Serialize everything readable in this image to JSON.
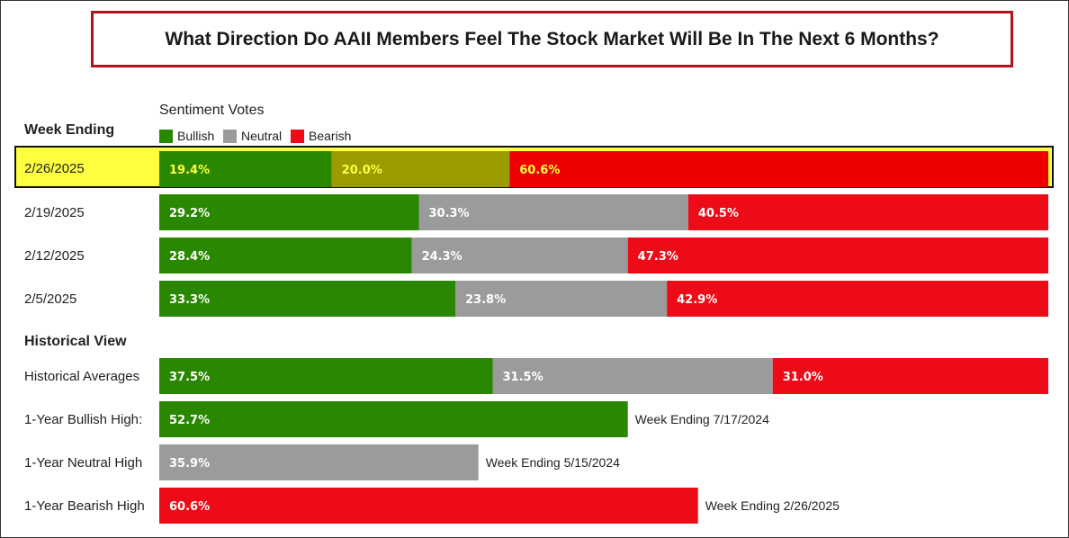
{
  "title": "What Direction Do AAII Members Feel The Stock Market Will Be In The Next 6 Months?",
  "week_ending_header": "Week Ending",
  "historical_header": "Historical View",
  "legend": {
    "title": "Sentiment Votes",
    "items": [
      {
        "label": "Bullish",
        "color": "#2a8700"
      },
      {
        "label": "Neutral",
        "color": "#9b9b9b"
      },
      {
        "label": "Bearish",
        "color": "#ee0b18"
      }
    ]
  },
  "colors": {
    "bullish": "#2a8700",
    "neutral": "#9b9b9b",
    "bearish": "#ee0b18",
    "highlight_bullish": "#2a8700",
    "highlight_neutral": "#9c9c00",
    "highlight_bearish": "#ee0000",
    "highlight_row": "#ffff40",
    "highlight_text": "#ffff40"
  },
  "rows": [
    {
      "label": "2/26/2025",
      "highlight": true
    },
    {
      "label": "2/19/2025"
    },
    {
      "label": "2/12/2025"
    },
    {
      "label": "2/5/2025"
    },
    {
      "label": "Historical Averages"
    },
    {
      "label": "1-Year Bullish High:"
    },
    {
      "label": "1-Year Neutral High"
    },
    {
      "label": "1-Year Bearish High"
    }
  ],
  "chart_data": {
    "type": "bar",
    "orientation": "horizontal",
    "stacked": true,
    "categories": [
      "2/26/2025",
      "2/19/2025",
      "2/12/2025",
      "2/5/2025",
      "Historical Averages",
      "1-Year Bullish High:",
      "1-Year Neutral High",
      "1-Year Bearish High"
    ],
    "series": [
      {
        "name": "Bullish",
        "values": [
          19.4,
          29.2,
          28.4,
          33.3,
          37.5,
          52.7,
          null,
          null
        ],
        "labels": [
          "19.4%",
          "29.2%",
          "28.4%",
          "33.3%",
          "37.5%",
          "52.7%",
          null,
          null
        ]
      },
      {
        "name": "Neutral",
        "values": [
          20.0,
          30.3,
          24.3,
          23.8,
          31.5,
          null,
          35.9,
          null
        ],
        "labels": [
          "20.0%",
          "30.3%",
          "24.3%",
          "23.8%",
          "31.5%",
          null,
          "35.9%",
          null
        ]
      },
      {
        "name": "Bearish",
        "values": [
          60.6,
          40.5,
          47.3,
          42.9,
          31.0,
          null,
          null,
          60.6
        ],
        "labels": [
          "60.6%",
          "40.5%",
          "47.3%",
          "42.9%",
          "31.0%",
          null,
          null,
          "60.6%"
        ]
      }
    ],
    "annotations": [
      null,
      null,
      null,
      null,
      null,
      "Week Ending 7/17/2024",
      "Week Ending 5/15/2024",
      "Week Ending 2/26/2025"
    ],
    "xlim": [
      0,
      100
    ],
    "grid": false,
    "legend_position": "top-left"
  }
}
